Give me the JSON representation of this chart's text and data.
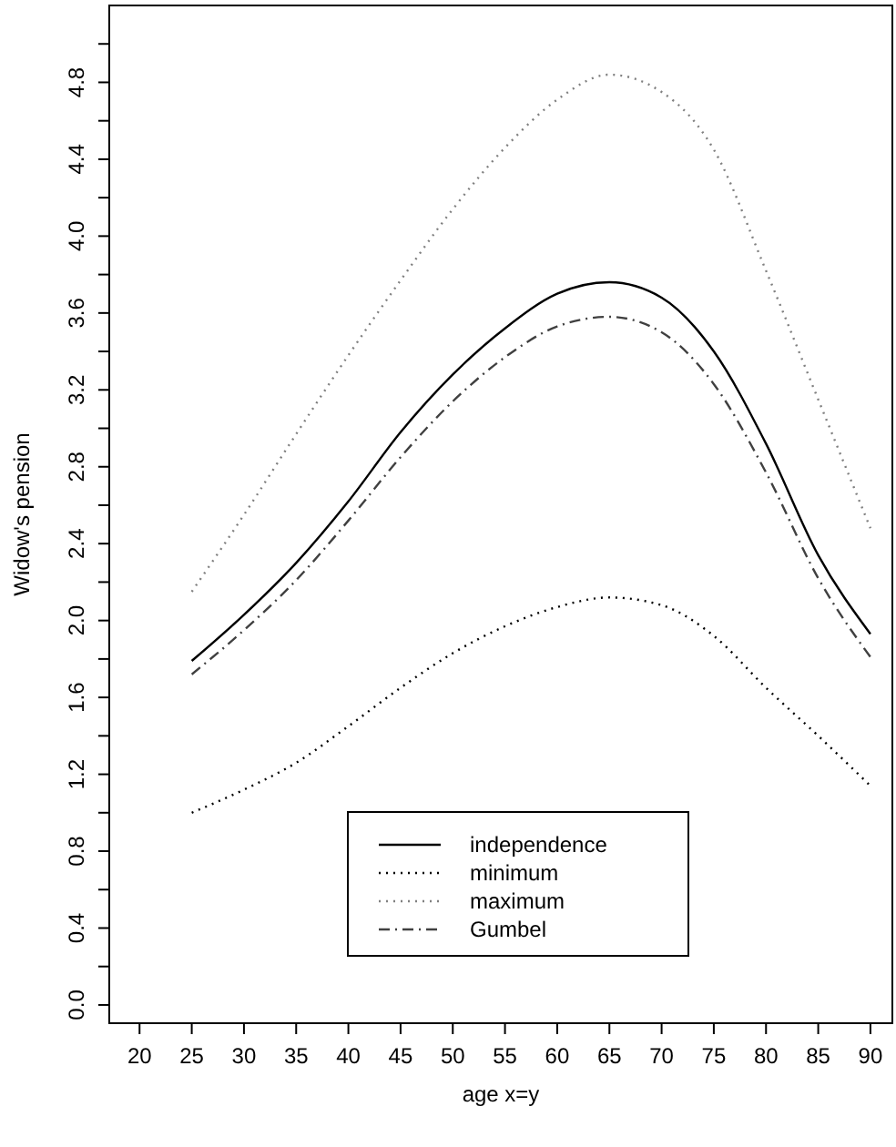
{
  "chart_data": {
    "type": "line",
    "xlabel": "age x=y",
    "ylabel": "Widow's pension",
    "x": [
      25,
      30,
      35,
      40,
      45,
      50,
      55,
      60,
      65,
      70,
      75,
      80,
      85,
      90
    ],
    "series": [
      {
        "name": "independence",
        "color": "#000000",
        "line_style": "solid",
        "values": [
          1.79,
          2.03,
          2.3,
          2.62,
          2.98,
          3.28,
          3.52,
          3.7,
          3.76,
          3.68,
          3.4,
          2.92,
          2.34,
          1.93
        ]
      },
      {
        "name": "minimum",
        "color": "#000000",
        "line_style": "dotted",
        "values": [
          1.0,
          1.12,
          1.26,
          1.45,
          1.65,
          1.83,
          1.97,
          2.07,
          2.12,
          2.08,
          1.92,
          1.65,
          1.4,
          1.14
        ]
      },
      {
        "name": "maximum",
        "color": "#808080",
        "line_style": "dotted",
        "values": [
          2.15,
          2.55,
          2.97,
          3.38,
          3.77,
          4.14,
          4.46,
          4.71,
          4.84,
          4.75,
          4.45,
          3.82,
          3.15,
          2.48
        ]
      },
      {
        "name": "Gumbel",
        "color": "#404040",
        "line_style": "dashdot",
        "values": [
          1.72,
          1.95,
          2.21,
          2.52,
          2.85,
          3.14,
          3.37,
          3.53,
          3.58,
          3.5,
          3.23,
          2.77,
          2.22,
          1.81
        ]
      }
    ],
    "xlim": [
      17.1,
      92.1
    ],
    "ylim": [
      -0.095,
      5.2
    ],
    "xticks": [
      20,
      25,
      30,
      35,
      40,
      45,
      50,
      55,
      60,
      65,
      70,
      75,
      80,
      85,
      90
    ],
    "yticks": [
      {
        "value": 0,
        "label": "0.0"
      },
      {
        "value": 0.2,
        "label": null
      },
      {
        "value": 0.4,
        "label": "0.4"
      },
      {
        "value": 0.6,
        "label": null
      },
      {
        "value": 0.8,
        "label": "0.8"
      },
      {
        "value": 1,
        "label": null
      },
      {
        "value": 1.2,
        "label": "1.2"
      },
      {
        "value": 1.4,
        "label": null
      },
      {
        "value": 1.6,
        "label": "1.6"
      },
      {
        "value": 1.8,
        "label": null
      },
      {
        "value": 2,
        "label": "2.0"
      },
      {
        "value": 2.2,
        "label": null
      },
      {
        "value": 2.4,
        "label": "2.4"
      },
      {
        "value": 2.6,
        "label": null
      },
      {
        "value": 2.8,
        "label": "2.8"
      },
      {
        "value": 3,
        "label": null
      },
      {
        "value": 3.2,
        "label": "3.2"
      },
      {
        "value": 3.4,
        "label": null
      },
      {
        "value": 3.6,
        "label": "3.6"
      },
      {
        "value": 3.8,
        "label": null
      },
      {
        "value": 4,
        "label": "4.0"
      },
      {
        "value": 4.2,
        "label": null
      },
      {
        "value": 4.4,
        "label": "4.4"
      },
      {
        "value": 4.6,
        "label": null
      },
      {
        "value": 4.8,
        "label": "4.8"
      },
      {
        "value": 5,
        "label": null
      }
    ],
    "grid": false,
    "legend": "bottom",
    "marker": "none"
  }
}
